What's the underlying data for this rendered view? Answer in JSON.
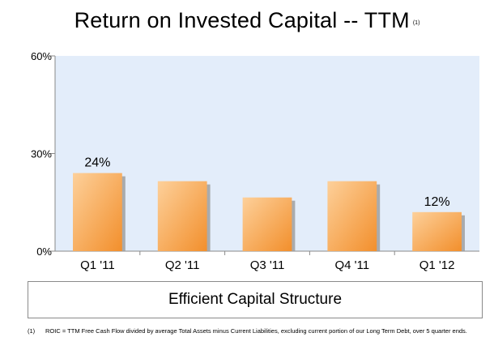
{
  "title": "Return on Invested Capital -- TTM",
  "title_note": "(1)",
  "banner": "Efficient Capital Structure",
  "footnote": {
    "marker": "(1)",
    "text": "ROIC = TTM Free Cash Flow divided by average Total Assets minus Current Liabilities, excluding current portion of our Long Term Debt, over 5 quarter ends."
  },
  "colors": {
    "plot_bg": "#e3edfa",
    "bar_light": "#fdd09a",
    "bar_dark": "#f28f2c",
    "bar_shadow": "#9a9a9a"
  },
  "chart_data": {
    "type": "bar",
    "categories": [
      "Q1 '11",
      "Q2 '11",
      "Q3 '11",
      "Q4 '11",
      "Q1 '12"
    ],
    "values": [
      24,
      21.5,
      16.5,
      21.5,
      12
    ],
    "data_labels": [
      "24%",
      "",
      "",
      "",
      "12%"
    ],
    "ylim": [
      0,
      60
    ],
    "yticks": [
      0,
      30,
      60
    ],
    "ytick_labels": [
      "0%",
      "30%",
      "60%"
    ],
    "grid": false,
    "legend": "none"
  }
}
